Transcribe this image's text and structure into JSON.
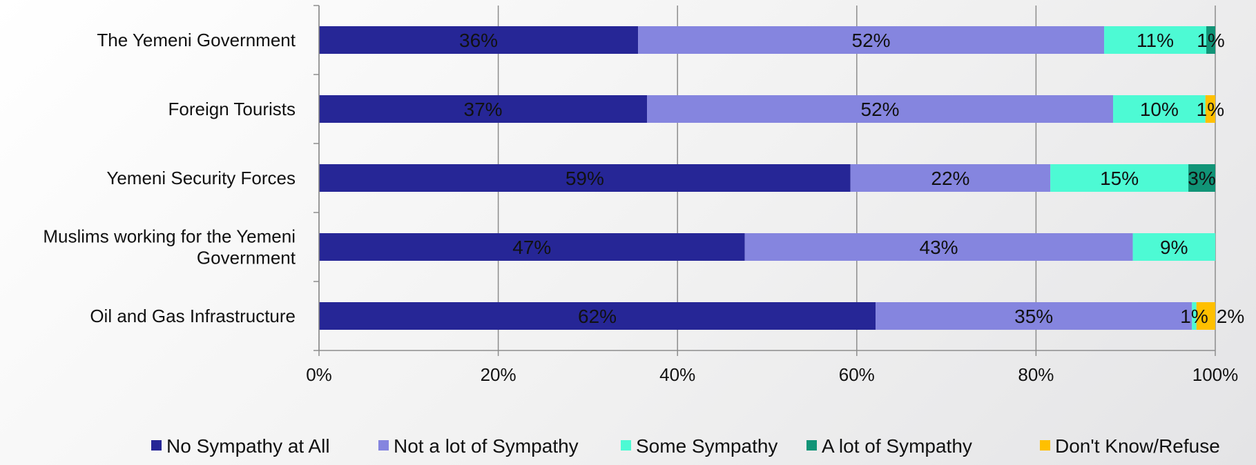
{
  "chart_data": {
    "type": "bar",
    "orientation": "horizontal",
    "stacked": "percent",
    "categories": [
      "The Yemeni Government",
      "Foreign Tourists",
      "Yemeni Security Forces",
      "Muslims working for the Yemeni Government",
      "Oil and Gas Infrastructure"
    ],
    "series": [
      {
        "name": "No Sympathy at All",
        "color": "#262696",
        "values": [
          35.6,
          36.6,
          59.3,
          47.5,
          62.1
        ],
        "labels": [
          "36%",
          "37%",
          "59%",
          "47%",
          "62%"
        ]
      },
      {
        "name": "Not a lot of Sympathy",
        "color": "#8585DF",
        "values": [
          52.0,
          52.0,
          22.3,
          43.3,
          35.3
        ],
        "labels": [
          "52%",
          "52%",
          "22%",
          "43%",
          "35%"
        ]
      },
      {
        "name": "Some Sympathy",
        "color": "#4DFAD4",
        "values": [
          11.4,
          10.3,
          15.4,
          9.2,
          0.5
        ],
        "labels": [
          "11%",
          "10%",
          "15%",
          "9%",
          "1%"
        ]
      },
      {
        "name": "A lot of Sympathy",
        "color": "#119477",
        "values": [
          1.0,
          0.0,
          3.0,
          0.0,
          0.0
        ],
        "labels": [
          "1%",
          "",
          "3%",
          "",
          ""
        ]
      },
      {
        "name": "Don't Know/Refuse",
        "color": "#FFC000",
        "values": [
          0.0,
          1.1,
          0.0,
          0.0,
          2.1
        ],
        "labels": [
          "",
          "1%",
          "",
          "",
          "2%"
        ]
      }
    ],
    "xlim": [
      0,
      100
    ],
    "xticks": [
      "0%",
      "20%",
      "40%",
      "60%",
      "80%",
      "100%"
    ],
    "grid": true,
    "legend_position": "bottom"
  }
}
